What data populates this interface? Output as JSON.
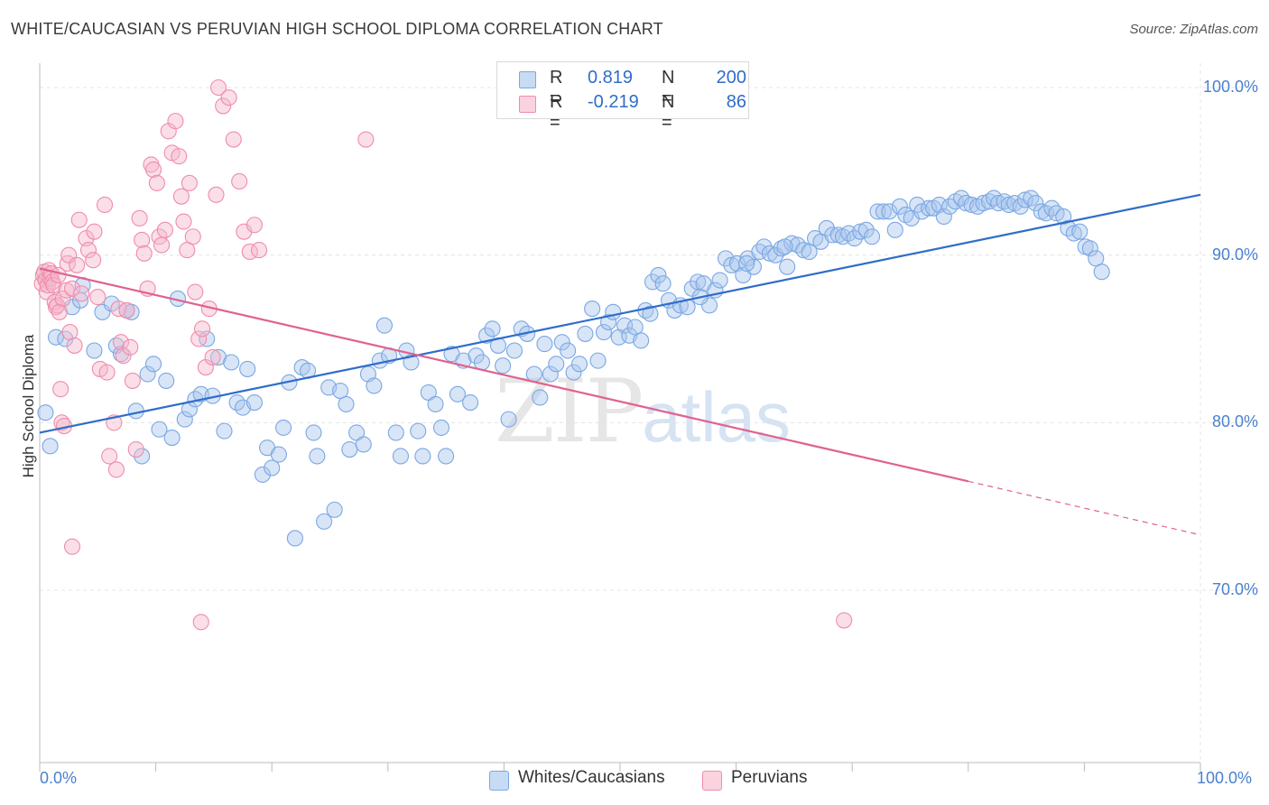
{
  "header": {
    "title": "WHITE/CAUCASIAN VS PERUVIAN HIGH SCHOOL DIPLOMA CORRELATION CHART",
    "source": "Source: ZipAtlas.com"
  },
  "watermark": {
    "zip": "ZIP",
    "atlas": "atlas"
  },
  "legend": {
    "rows": [
      {
        "r_label": "R =",
        "r_value": "0.819",
        "n_label": "N =",
        "n_value": "200",
        "color": "#a9c6ee"
      },
      {
        "r_label": "R =",
        "r_value": "-0.219",
        "n_label": "N =",
        "n_value": "86",
        "color": "#f5b8cb"
      }
    ]
  },
  "bottom_legend": [
    {
      "label": "Whites/Caucasians",
      "color": "#a9c6ee"
    },
    {
      "label": "Peruvians",
      "color": "#f5b8cb"
    }
  ],
  "chart_data": {
    "type": "scatter",
    "ylabel": "High School Diploma",
    "xlim": [
      0,
      100
    ],
    "ylim": [
      60,
      102
    ],
    "x_ticks": [
      "0.0%",
      "100.0%"
    ],
    "y_ticks": [
      {
        "value": 100,
        "label": "100.0%"
      },
      {
        "value": 90,
        "label": "90.0%"
      },
      {
        "value": 80,
        "label": "80.0%"
      },
      {
        "value": 70,
        "label": "70.0%"
      }
    ],
    "grid": true,
    "series": [
      {
        "name": "Whites/Caucasians",
        "color": "#7aa7e3",
        "trend": {
          "x": [
            0,
            100
          ],
          "y": [
            79.4,
            93.6
          ],
          "color": "#2f6dc9"
        },
        "points": [
          [
            0.5,
            80.6
          ],
          [
            0.9,
            78.6
          ],
          [
            1.4,
            85.1
          ],
          [
            2.2,
            85.0
          ],
          [
            2.8,
            86.9
          ],
          [
            3.5,
            87.3
          ],
          [
            3.7,
            88.2
          ],
          [
            4.7,
            84.3
          ],
          [
            5.4,
            86.6
          ],
          [
            6.2,
            87.1
          ],
          [
            6.6,
            84.6
          ],
          [
            7.0,
            84.1
          ],
          [
            7.5,
            86.7
          ],
          [
            7.9,
            86.6
          ],
          [
            8.3,
            80.7
          ],
          [
            8.8,
            78.0
          ],
          [
            9.3,
            82.9
          ],
          [
            9.8,
            83.5
          ],
          [
            10.3,
            79.6
          ],
          [
            10.9,
            82.5
          ],
          [
            11.4,
            79.1
          ],
          [
            11.9,
            87.4
          ],
          [
            12.5,
            80.2
          ],
          [
            12.9,
            80.8
          ],
          [
            13.4,
            81.4
          ],
          [
            13.9,
            81.7
          ],
          [
            14.4,
            85.0
          ],
          [
            14.9,
            81.6
          ],
          [
            15.4,
            83.9
          ],
          [
            15.9,
            79.5
          ],
          [
            16.5,
            83.6
          ],
          [
            17.0,
            81.2
          ],
          [
            17.5,
            80.9
          ],
          [
            17.9,
            83.2
          ],
          [
            18.5,
            81.2
          ],
          [
            19.2,
            76.9
          ],
          [
            19.6,
            78.5
          ],
          [
            20.0,
            77.3
          ],
          [
            20.6,
            78.1
          ],
          [
            21.0,
            79.7
          ],
          [
            21.5,
            82.4
          ],
          [
            22.0,
            73.1
          ],
          [
            22.6,
            83.3
          ],
          [
            23.1,
            83.1
          ],
          [
            23.6,
            79.4
          ],
          [
            23.9,
            78.0
          ],
          [
            24.5,
            74.1
          ],
          [
            24.9,
            82.1
          ],
          [
            25.4,
            74.8
          ],
          [
            25.9,
            81.9
          ],
          [
            26.4,
            81.1
          ],
          [
            26.7,
            78.4
          ],
          [
            27.3,
            79.4
          ],
          [
            27.9,
            78.7
          ],
          [
            28.3,
            82.9
          ],
          [
            28.8,
            82.2
          ],
          [
            29.3,
            83.7
          ],
          [
            29.7,
            85.8
          ],
          [
            30.1,
            84.0
          ],
          [
            30.7,
            79.4
          ],
          [
            31.1,
            78.0
          ],
          [
            31.6,
            84.3
          ],
          [
            32.0,
            83.6
          ],
          [
            32.6,
            79.5
          ],
          [
            33.0,
            78.0
          ],
          [
            33.5,
            81.8
          ],
          [
            34.1,
            81.1
          ],
          [
            34.6,
            79.7
          ],
          [
            35.0,
            78.0
          ],
          [
            35.5,
            84.1
          ],
          [
            36.0,
            81.7
          ],
          [
            36.5,
            83.7
          ],
          [
            37.1,
            81.2
          ],
          [
            37.6,
            84.0
          ],
          [
            38.1,
            83.6
          ],
          [
            38.5,
            85.2
          ],
          [
            39.0,
            85.6
          ],
          [
            39.5,
            84.6
          ],
          [
            39.9,
            83.4
          ],
          [
            40.4,
            80.2
          ],
          [
            40.9,
            84.3
          ],
          [
            41.5,
            85.6
          ],
          [
            42.0,
            85.3
          ],
          [
            42.6,
            82.9
          ],
          [
            43.1,
            81.5
          ],
          [
            43.5,
            84.7
          ],
          [
            44.0,
            82.9
          ],
          [
            44.5,
            83.5
          ],
          [
            45.0,
            84.8
          ],
          [
            45.5,
            84.3
          ],
          [
            46.0,
            83.0
          ],
          [
            46.5,
            83.5
          ],
          [
            47.0,
            85.3
          ],
          [
            47.6,
            86.8
          ],
          [
            48.1,
            83.7
          ],
          [
            48.6,
            85.4
          ],
          [
            49.0,
            86.0
          ],
          [
            49.4,
            86.6
          ],
          [
            49.9,
            85.1
          ],
          [
            50.4,
            85.8
          ],
          [
            50.8,
            85.2
          ],
          [
            51.3,
            85.7
          ],
          [
            51.8,
            84.9
          ],
          [
            52.2,
            86.7
          ],
          [
            52.8,
            88.4
          ],
          [
            53.3,
            88.8
          ],
          [
            53.7,
            88.3
          ],
          [
            54.2,
            87.3
          ],
          [
            54.7,
            86.7
          ],
          [
            55.2,
            87.0
          ],
          [
            55.8,
            86.9
          ],
          [
            56.2,
            88.0
          ],
          [
            56.7,
            88.4
          ],
          [
            57.2,
            88.3
          ],
          [
            57.7,
            87.0
          ],
          [
            58.2,
            87.9
          ],
          [
            58.6,
            88.5
          ],
          [
            59.1,
            89.8
          ],
          [
            59.6,
            89.4
          ],
          [
            60.1,
            89.5
          ],
          [
            60.6,
            88.8
          ],
          [
            61.0,
            89.8
          ],
          [
            61.5,
            89.3
          ],
          [
            62.0,
            90.2
          ],
          [
            62.4,
            90.5
          ],
          [
            62.9,
            90.1
          ],
          [
            63.4,
            90.0
          ],
          [
            63.9,
            90.4
          ],
          [
            64.4,
            89.3
          ],
          [
            64.8,
            90.7
          ],
          [
            65.3,
            90.6
          ],
          [
            65.8,
            90.3
          ],
          [
            66.3,
            90.2
          ],
          [
            66.8,
            91.0
          ],
          [
            67.3,
            90.8
          ],
          [
            67.8,
            91.6
          ],
          [
            68.3,
            91.2
          ],
          [
            68.8,
            91.2
          ],
          [
            69.2,
            91.1
          ],
          [
            69.7,
            91.3
          ],
          [
            70.2,
            91.0
          ],
          [
            70.7,
            91.4
          ],
          [
            71.2,
            91.5
          ],
          [
            71.7,
            91.1
          ],
          [
            72.2,
            92.6
          ],
          [
            72.7,
            92.6
          ],
          [
            73.2,
            92.6
          ],
          [
            73.7,
            91.5
          ],
          [
            74.1,
            92.9
          ],
          [
            74.6,
            92.4
          ],
          [
            75.1,
            92.2
          ],
          [
            75.6,
            93.0
          ],
          [
            76.0,
            92.6
          ],
          [
            76.6,
            92.8
          ],
          [
            77.0,
            92.8
          ],
          [
            77.5,
            93.0
          ],
          [
            77.9,
            92.3
          ],
          [
            78.4,
            92.9
          ],
          [
            78.9,
            93.2
          ],
          [
            79.4,
            93.4
          ],
          [
            79.8,
            93.1
          ],
          [
            80.3,
            93.0
          ],
          [
            80.8,
            92.9
          ],
          [
            81.3,
            93.1
          ],
          [
            81.8,
            93.2
          ],
          [
            82.2,
            93.4
          ],
          [
            82.6,
            93.1
          ],
          [
            83.1,
            93.2
          ],
          [
            83.5,
            93.0
          ],
          [
            84.0,
            93.1
          ],
          [
            84.5,
            92.9
          ],
          [
            84.9,
            93.3
          ],
          [
            85.4,
            93.4
          ],
          [
            85.8,
            93.1
          ],
          [
            86.3,
            92.6
          ],
          [
            86.7,
            92.5
          ],
          [
            87.2,
            92.8
          ],
          [
            87.6,
            92.5
          ],
          [
            88.2,
            92.3
          ],
          [
            88.6,
            91.6
          ],
          [
            89.1,
            91.3
          ],
          [
            89.6,
            91.4
          ],
          [
            90.1,
            90.5
          ],
          [
            90.5,
            90.4
          ],
          [
            91.0,
            89.8
          ],
          [
            91.5,
            89.0
          ],
          [
            52.6,
            86.5
          ],
          [
            56.9,
            87.5
          ],
          [
            60.9,
            89.5
          ],
          [
            64.2,
            90.5
          ]
        ]
      },
      {
        "name": "Peruvians",
        "color": "#f08cab",
        "trend": {
          "x": [
            0,
            80
          ],
          "y": [
            89.2,
            76.5
          ],
          "dash_to": [
            100,
            73.3
          ],
          "color": "#e0628f"
        },
        "points": [
          [
            0.2,
            88.3
          ],
          [
            0.3,
            88.8
          ],
          [
            0.4,
            89.0
          ],
          [
            0.5,
            88.5
          ],
          [
            0.6,
            87.8
          ],
          [
            0.7,
            88.2
          ],
          [
            0.8,
            89.1
          ],
          [
            0.9,
            88.6
          ],
          [
            1.0,
            88.9
          ],
          [
            1.1,
            88.4
          ],
          [
            1.2,
            88.2
          ],
          [
            1.3,
            87.2
          ],
          [
            1.4,
            86.9
          ],
          [
            1.5,
            87.0
          ],
          [
            1.6,
            88.8
          ],
          [
            1.7,
            86.6
          ],
          [
            1.8,
            82.0
          ],
          [
            1.9,
            80.0
          ],
          [
            2.0,
            87.4
          ],
          [
            2.1,
            79.8
          ],
          [
            2.3,
            87.9
          ],
          [
            2.4,
            89.5
          ],
          [
            2.5,
            90.0
          ],
          [
            2.6,
            85.4
          ],
          [
            2.8,
            88.0
          ],
          [
            3.0,
            84.6
          ],
          [
            3.2,
            89.4
          ],
          [
            3.4,
            92.1
          ],
          [
            3.6,
            87.7
          ],
          [
            4.0,
            91.0
          ],
          [
            4.2,
            90.3
          ],
          [
            4.6,
            89.7
          ],
          [
            4.7,
            91.4
          ],
          [
            5.0,
            87.5
          ],
          [
            5.2,
            83.2
          ],
          [
            5.6,
            93.0
          ],
          [
            5.8,
            83.0
          ],
          [
            6.0,
            78.0
          ],
          [
            6.4,
            80.0
          ],
          [
            6.6,
            77.2
          ],
          [
            6.8,
            86.8
          ],
          [
            7.0,
            84.8
          ],
          [
            7.2,
            84.0
          ],
          [
            7.5,
            86.7
          ],
          [
            7.8,
            84.5
          ],
          [
            8.0,
            82.5
          ],
          [
            8.3,
            78.4
          ],
          [
            8.6,
            92.2
          ],
          [
            8.8,
            90.9
          ],
          [
            9.0,
            90.1
          ],
          [
            9.3,
            88.0
          ],
          [
            9.6,
            95.4
          ],
          [
            9.8,
            95.1
          ],
          [
            10.1,
            94.3
          ],
          [
            10.3,
            91.1
          ],
          [
            10.5,
            90.6
          ],
          [
            10.8,
            91.5
          ],
          [
            11.1,
            97.4
          ],
          [
            11.4,
            96.1
          ],
          [
            11.7,
            98.0
          ],
          [
            12.0,
            95.9
          ],
          [
            12.2,
            93.5
          ],
          [
            12.4,
            92.0
          ],
          [
            12.7,
            90.3
          ],
          [
            12.9,
            94.3
          ],
          [
            13.2,
            91.1
          ],
          [
            13.4,
            87.8
          ],
          [
            13.7,
            85.0
          ],
          [
            14.0,
            85.6
          ],
          [
            14.3,
            83.3
          ],
          [
            14.6,
            86.8
          ],
          [
            14.9,
            83.9
          ],
          [
            15.2,
            93.6
          ],
          [
            15.4,
            100.0
          ],
          [
            15.8,
            98.9
          ],
          [
            16.3,
            99.4
          ],
          [
            16.7,
            96.9
          ],
          [
            17.2,
            94.4
          ],
          [
            17.6,
            91.4
          ],
          [
            18.1,
            90.2
          ],
          [
            18.5,
            91.8
          ],
          [
            18.9,
            90.3
          ],
          [
            2.8,
            72.6
          ],
          [
            13.9,
            68.1
          ],
          [
            69.3,
            68.2
          ],
          [
            28.1,
            96.9
          ]
        ]
      }
    ]
  }
}
